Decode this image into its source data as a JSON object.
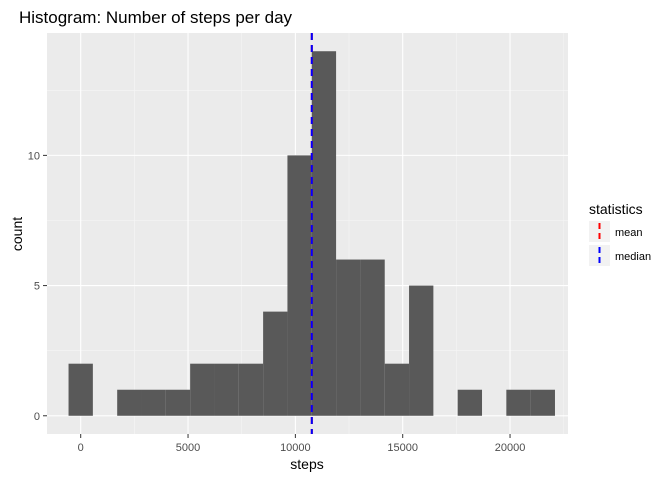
{
  "chart_data": {
    "type": "bar",
    "title": "Histogram: Number of steps per day",
    "xlabel": "steps",
    "ylabel": "count",
    "xlim": [
      -1570,
      22700
    ],
    "ylim": [
      -0.7,
      14.7
    ],
    "x_ticks": [
      0,
      5000,
      10000,
      15000,
      20000
    ],
    "x_tick_labels": [
      "0",
      "5000",
      "10000",
      "15000",
      "20000"
    ],
    "y_ticks": [
      0,
      5,
      10
    ],
    "y_tick_labels": [
      "0",
      "5",
      "10"
    ],
    "bin_width": 1133,
    "bins": [
      {
        "x": 0,
        "count": 2
      },
      {
        "x": 1133,
        "count": 0
      },
      {
        "x": 2266,
        "count": 1
      },
      {
        "x": 3399,
        "count": 1
      },
      {
        "x": 4532,
        "count": 1
      },
      {
        "x": 5665,
        "count": 2
      },
      {
        "x": 6798,
        "count": 2
      },
      {
        "x": 7931,
        "count": 2
      },
      {
        "x": 9064,
        "count": 4
      },
      {
        "x": 10197,
        "count": 10
      },
      {
        "x": 11330,
        "count": 14
      },
      {
        "x": 12463,
        "count": 6
      },
      {
        "x": 13596,
        "count": 6
      },
      {
        "x": 14729,
        "count": 2
      },
      {
        "x": 15862,
        "count": 5
      },
      {
        "x": 16995,
        "count": 0
      },
      {
        "x": 18128,
        "count": 1
      },
      {
        "x": 19261,
        "count": 0
      },
      {
        "x": 20394,
        "count": 1
      },
      {
        "x": 21527,
        "count": 1
      }
    ],
    "vlines": [
      {
        "name": "mean",
        "value": 10766,
        "color": "#FF0000"
      },
      {
        "name": "median",
        "value": 10765,
        "color": "#0000FF"
      }
    ],
    "legend": {
      "title": "statistics",
      "entries": [
        "mean",
        "median"
      ],
      "placement": "right"
    },
    "grid": true,
    "colors": {
      "panel": "#EBEBEB",
      "grid_major": "#FFFFFF",
      "grid_minor": "#F5F5F5",
      "bar": "#595959",
      "text": "#000000",
      "tick_text": "#4D4D4D"
    }
  }
}
